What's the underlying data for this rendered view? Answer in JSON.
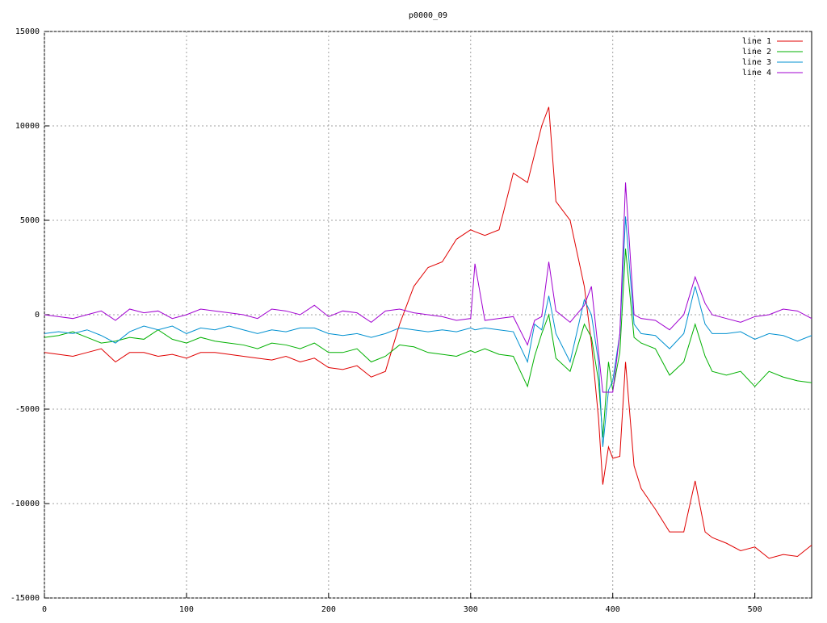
{
  "chart_data": {
    "type": "line",
    "title": "p0000_09",
    "x": [
      0,
      10,
      20,
      30,
      40,
      50,
      60,
      70,
      80,
      90,
      100,
      110,
      120,
      130,
      140,
      150,
      160,
      170,
      180,
      190,
      200,
      210,
      220,
      230,
      240,
      250,
      260,
      270,
      280,
      290,
      300,
      303,
      310,
      320,
      330,
      340,
      345,
      350,
      355,
      360,
      370,
      380,
      385,
      390,
      393,
      397,
      400,
      405,
      409,
      415,
      420,
      430,
      440,
      450,
      458,
      465,
      470,
      480,
      490,
      500,
      510,
      520,
      530,
      540
    ],
    "series": [
      {
        "name": "line 1",
        "color": "#e00000",
        "values": [
          -2000,
          -2100,
          -2200,
          -2000,
          -1800,
          -2500,
          -2000,
          -2000,
          -2200,
          -2100,
          -2300,
          -2000,
          -2000,
          -2100,
          -2200,
          -2300,
          -2400,
          -2200,
          -2500,
          -2300,
          -2800,
          -2900,
          -2700,
          -3300,
          -3000,
          -500,
          1500,
          2500,
          2800,
          4000,
          4500,
          4400,
          4200,
          4500,
          7500,
          7000,
          8500,
          10000,
          11000,
          6000,
          5000,
          1500,
          -1500,
          -5500,
          -9000,
          -7000,
          -7600,
          -7500,
          -2500,
          -8000,
          -9200,
          -10300,
          -11500,
          -11500,
          -8800,
          -11500,
          -11800,
          -12100,
          -12500,
          -12300,
          -12900,
          -12700,
          -12800,
          -12200
        ]
      },
      {
        "name": "line 2",
        "color": "#00b000",
        "values": [
          -1200,
          -1100,
          -900,
          -1200,
          -1500,
          -1400,
          -1200,
          -1300,
          -800,
          -1300,
          -1500,
          -1200,
          -1400,
          -1500,
          -1600,
          -1800,
          -1500,
          -1600,
          -1800,
          -1500,
          -2000,
          -2000,
          -1800,
          -2500,
          -2200,
          -1600,
          -1700,
          -2000,
          -2100,
          -2200,
          -1900,
          -2000,
          -1800,
          -2100,
          -2200,
          -3800,
          -2200,
          -1000,
          0,
          -2300,
          -3000,
          -500,
          -1200,
          -3500,
          -6500,
          -2500,
          -4000,
          -2000,
          3500,
          -1200,
          -1500,
          -1800,
          -3200,
          -2500,
          -500,
          -2200,
          -3000,
          -3200,
          -3000,
          -3800,
          -3000,
          -3300,
          -3500,
          -3600
        ]
      },
      {
        "name": "line 3",
        "color": "#0090d0",
        "values": [
          -1000,
          -900,
          -1000,
          -800,
          -1100,
          -1500,
          -900,
          -600,
          -800,
          -600,
          -1000,
          -700,
          -800,
          -600,
          -800,
          -1000,
          -800,
          -900,
          -700,
          -700,
          -1000,
          -1100,
          -1000,
          -1200,
          -1000,
          -700,
          -800,
          -900,
          -800,
          -900,
          -700,
          -800,
          -700,
          -800,
          -900,
          -2500,
          -500,
          -800,
          1000,
          -1000,
          -2500,
          800,
          0,
          -2500,
          -7000,
          -4000,
          -3500,
          -1000,
          5200,
          -500,
          -1000,
          -1100,
          -1800,
          -1000,
          1500,
          -500,
          -1000,
          -1000,
          -900,
          -1300,
          -1000,
          -1100,
          -1400,
          -1100
        ]
      },
      {
        "name": "line 4",
        "color": "#a000d0",
        "values": [
          0,
          -100,
          -200,
          0,
          200,
          -300,
          300,
          100,
          200,
          -200,
          0,
          300,
          200,
          100,
          0,
          -200,
          300,
          200,
          0,
          500,
          -100,
          200,
          100,
          -400,
          200,
          300,
          100,
          0,
          -100,
          -300,
          -200,
          2700,
          -300,
          -200,
          -100,
          -1600,
          -300,
          -100,
          2800,
          200,
          -400,
          500,
          1500,
          -2000,
          -4100,
          -4100,
          -4100,
          -1000,
          7000,
          0,
          -200,
          -300,
          -800,
          0,
          2000,
          600,
          0,
          -200,
          -400,
          -100,
          0,
          300,
          200,
          -200
        ]
      }
    ],
    "xlim": [
      0,
      540
    ],
    "ylim": [
      -15000,
      15000
    ],
    "xticks": [
      0,
      100,
      200,
      300,
      400,
      500
    ],
    "yticks": [
      -15000,
      -10000,
      -5000,
      0,
      5000,
      10000,
      15000
    ],
    "grid": true,
    "legend": "top-right"
  }
}
